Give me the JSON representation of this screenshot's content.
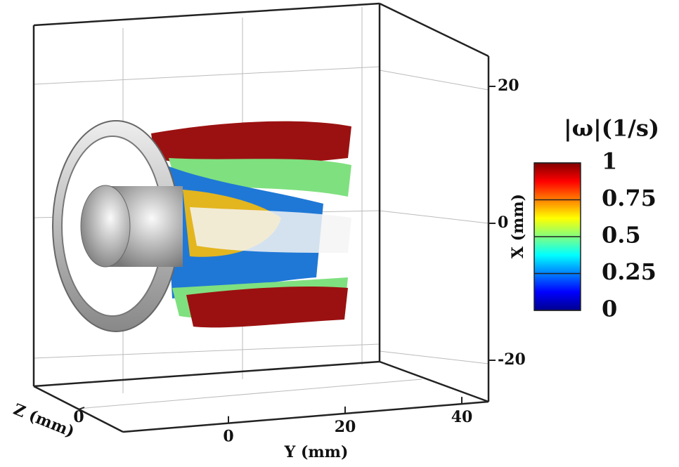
{
  "x_axis": {
    "label": "X (mm)",
    "ticks": [
      20,
      0,
      -20
    ]
  },
  "y_axis": {
    "label": "Y (mm)",
    "ticks": [
      0,
      20,
      40
    ]
  },
  "z_axis": {
    "label": "Z (mm)",
    "ticks": [
      0
    ]
  },
  "colorbar": {
    "title": "|ω|(1/s)",
    "ticks": [
      1,
      0.75,
      0.5,
      0.25,
      0
    ]
  }
}
